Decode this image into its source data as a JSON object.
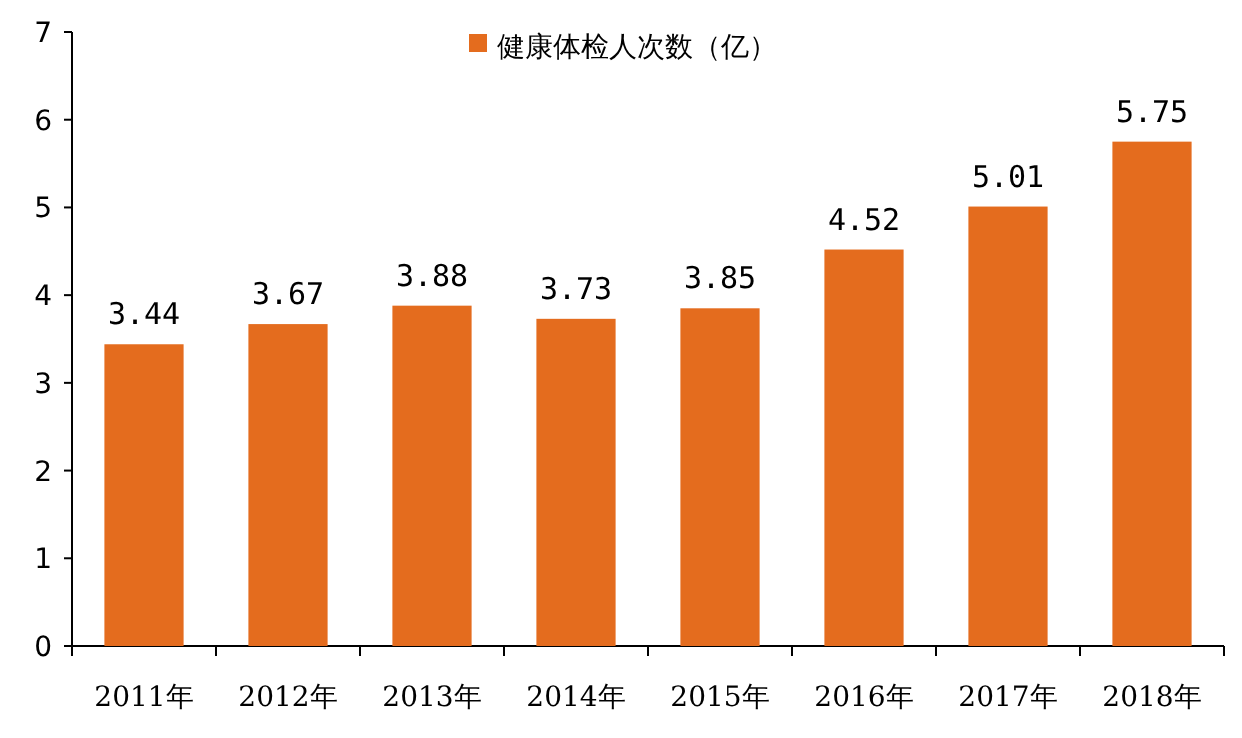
{
  "chart_data": {
    "type": "bar",
    "categories": [
      "2011年",
      "2012年",
      "2013年",
      "2014年",
      "2015年",
      "2016年",
      "2017年",
      "2018年"
    ],
    "series": [
      {
        "name": "健康体检人次数（亿）",
        "color": "#e46c1e",
        "values": [
          3.44,
          3.67,
          3.88,
          3.73,
          3.85,
          4.52,
          5.01,
          5.75
        ]
      }
    ],
    "ylim": [
      0,
      7
    ],
    "yticks": [
      0,
      1,
      2,
      3,
      4,
      5,
      6,
      7
    ],
    "data_labels": true,
    "legend": "top",
    "grid": false
  }
}
